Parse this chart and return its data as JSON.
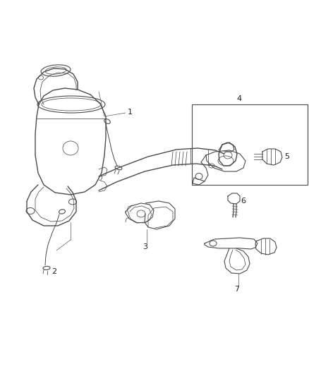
{
  "bg_color": "#ffffff",
  "line_color": "#4a4a4a",
  "label_color": "#222222",
  "lw_main": 0.9,
  "lw_thin": 0.55,
  "figsize": [
    4.38,
    5.33
  ],
  "dpi": 100
}
